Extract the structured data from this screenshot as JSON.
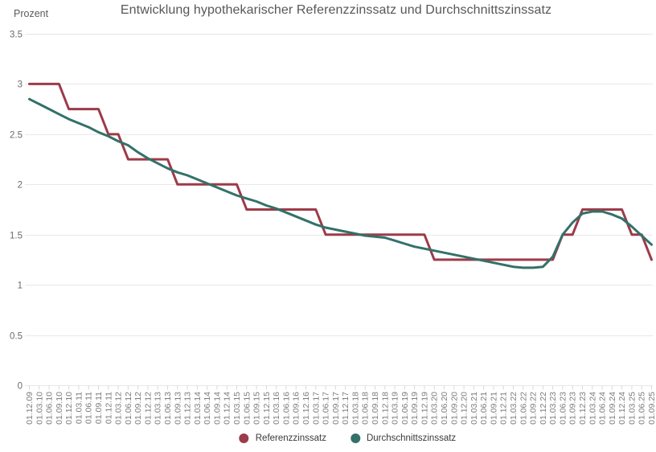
{
  "chart_data": {
    "type": "line",
    "title": "Entwicklung hypothekarischer Referenzzinssatz und Durchschnittszinssatz",
    "y_axis_title": "Prozent",
    "xlabel": "",
    "ylabel": "Prozent",
    "ylim": [
      0,
      3.5
    ],
    "yticks": [
      3.5,
      3,
      2.5,
      2,
      1.5,
      1,
      0.5,
      0
    ],
    "grid": "horizontal",
    "legend_position": "bottom",
    "x": [
      "01.12.09",
      "01.03.10",
      "01.06.10",
      "01.09.10",
      "01.12.10",
      "01.03.11",
      "01.06.11",
      "01.09.11",
      "01.12.11",
      "01.03.12",
      "01.06.12",
      "01.09.12",
      "01.12.12",
      "01.03.13",
      "01.06.13",
      "01.09.13",
      "01.12.13",
      "01.03.14",
      "01.06.14",
      "01.09.14",
      "01.12.14",
      "01.03.15",
      "01.06.15",
      "01.09.15",
      "01.12.15",
      "01.03.16",
      "01.06.16",
      "01.09.16",
      "01.12.16",
      "01.03.17",
      "01.06.17",
      "01.09.17",
      "01.12.17",
      "01.03.18",
      "01.06.18",
      "01.09.18",
      "01.12.18",
      "01.03.19",
      "01.06.19",
      "01.09.19",
      "01.12.19",
      "01.03.20",
      "01.06.20",
      "01.09.20",
      "01.12.20",
      "01.03.21",
      "01.06.21",
      "01.09.21",
      "01.12.21",
      "01.03.22",
      "01.06.22",
      "01.09.22",
      "01.12.22",
      "01.03.23",
      "01.06.23",
      "01.09.23",
      "01.12.23",
      "01.03.24",
      "01.06.24",
      "01.09.24",
      "01.12.24",
      "01.03.25",
      "01.06.25",
      "01.09.25"
    ],
    "series": [
      {
        "name": "Referenzzinssatz",
        "color": "#9c3b49",
        "values": [
          3,
          3,
          3,
          3,
          2.75,
          2.75,
          2.75,
          2.75,
          2.5,
          2.5,
          2.25,
          2.25,
          2.25,
          2.25,
          2.25,
          2,
          2,
          2,
          2,
          2,
          2,
          2,
          1.75,
          1.75,
          1.75,
          1.75,
          1.75,
          1.75,
          1.75,
          1.75,
          1.5,
          1.5,
          1.5,
          1.5,
          1.5,
          1.5,
          1.5,
          1.5,
          1.5,
          1.5,
          1.5,
          1.25,
          1.25,
          1.25,
          1.25,
          1.25,
          1.25,
          1.25,
          1.25,
          1.25,
          1.25,
          1.25,
          1.25,
          1.25,
          1.5,
          1.5,
          1.75,
          1.75,
          1.75,
          1.75,
          1.75,
          1.5,
          1.5,
          1.25
        ]
      },
      {
        "name": "Durchschnittszinssatz",
        "color": "#337169",
        "values": [
          2.85,
          2.8,
          2.75,
          2.7,
          2.65,
          2.61,
          2.57,
          2.52,
          2.48,
          2.43,
          2.39,
          2.32,
          2.26,
          2.21,
          2.16,
          2.12,
          2.09,
          2.05,
          2.01,
          1.97,
          1.93,
          1.89,
          1.86,
          1.83,
          1.79,
          1.76,
          1.72,
          1.68,
          1.64,
          1.6,
          1.57,
          1.55,
          1.53,
          1.51,
          1.49,
          1.48,
          1.47,
          1.44,
          1.41,
          1.38,
          1.36,
          1.34,
          1.32,
          1.3,
          1.28,
          1.26,
          1.24,
          1.22,
          1.2,
          1.18,
          1.17,
          1.17,
          1.18,
          1.28,
          1.5,
          1.62,
          1.71,
          1.73,
          1.73,
          1.7,
          1.66,
          1.58,
          1.49,
          1.4
        ]
      }
    ]
  },
  "colors": {
    "grid": "#e8e8e8",
    "tick": "#d9d9d9",
    "axis_text": "#6b6b6b",
    "x_label_text": "#7c7c7c"
  }
}
